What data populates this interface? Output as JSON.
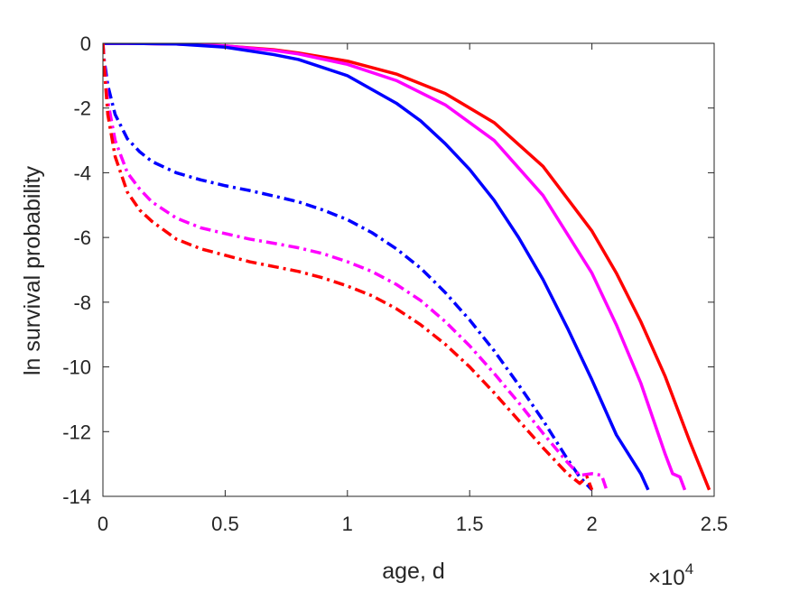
{
  "chart_data": {
    "type": "line",
    "xlabel": "age, d",
    "ylabel": "ln survival probability",
    "xlim": [
      0,
      25000
    ],
    "ylim": [
      -14,
      0
    ],
    "x_ticks": [
      0,
      5000,
      10000,
      15000,
      20000,
      25000
    ],
    "x_tick_labels": [
      "0",
      "0.5",
      "1",
      "1.5",
      "2",
      "2.5"
    ],
    "x_exponent": {
      "base": "×10",
      "power": "4"
    },
    "y_ticks": [
      0,
      -2,
      -4,
      -6,
      -8,
      -10,
      -12,
      -14
    ],
    "y_tick_labels": [
      "0",
      "-2",
      "-4",
      "-6",
      "-8",
      "-10",
      "-12",
      "-14"
    ],
    "grid": false,
    "box": true,
    "series": [
      {
        "color": "#ff0000",
        "style": "solid",
        "x": [
          0,
          1000,
          3000,
          5000,
          7000,
          8000,
          10000,
          12000,
          14000,
          16000,
          18000,
          20000,
          21000,
          22000,
          23000,
          24000,
          24800
        ],
        "y": [
          0,
          0,
          -0.02,
          -0.08,
          -0.2,
          -0.3,
          -0.55,
          -0.95,
          -1.55,
          -2.45,
          -3.8,
          -5.8,
          -7.1,
          -8.6,
          -10.3,
          -12.3,
          -13.8
        ]
      },
      {
        "color": "#ff00ff",
        "style": "solid",
        "x": [
          0,
          1000,
          3000,
          5000,
          7000,
          8000,
          10000,
          12000,
          14000,
          16000,
          18000,
          20000,
          21000,
          22000,
          23000,
          23300,
          23600,
          23800
        ],
        "y": [
          0,
          0,
          -0.02,
          -0.08,
          -0.22,
          -0.33,
          -0.65,
          -1.15,
          -1.9,
          -3.0,
          -4.7,
          -7.1,
          -8.7,
          -10.5,
          -12.7,
          -13.3,
          -13.4,
          -13.8
        ]
      },
      {
        "color": "#0000ff",
        "style": "solid",
        "x": [
          0,
          1000,
          3000,
          5000,
          7000,
          8000,
          10000,
          12000,
          13000,
          14000,
          15000,
          16000,
          17000,
          18000,
          19000,
          20000,
          21000,
          22000,
          22300
        ],
        "y": [
          0,
          0,
          -0.02,
          -0.12,
          -0.35,
          -0.5,
          -1.0,
          -1.85,
          -2.4,
          -3.1,
          -3.9,
          -4.85,
          -6.0,
          -7.3,
          -8.8,
          -10.4,
          -12.1,
          -13.3,
          -13.8
        ]
      },
      {
        "color": "#0000ff",
        "style": "dashdot",
        "x": [
          0,
          50,
          200,
          500,
          1000,
          1500,
          2000,
          3000,
          4000,
          5000,
          6000,
          7000,
          8000,
          9000,
          10000,
          11000,
          12000,
          13000,
          14000,
          15000,
          16000,
          17000,
          18000,
          19000,
          19500,
          20000
        ],
        "y": [
          0,
          -0.5,
          -1.3,
          -2.2,
          -2.95,
          -3.35,
          -3.65,
          -4.0,
          -4.22,
          -4.4,
          -4.55,
          -4.72,
          -4.9,
          -5.15,
          -5.45,
          -5.85,
          -6.35,
          -6.95,
          -7.7,
          -8.55,
          -9.5,
          -10.55,
          -11.65,
          -12.85,
          -13.4,
          -13.8
        ]
      },
      {
        "color": "#ff00ff",
        "style": "dashdot",
        "x": [
          0,
          50,
          200,
          500,
          1000,
          1500,
          2000,
          3000,
          4000,
          5000,
          6000,
          7000,
          8000,
          9000,
          10000,
          11000,
          12000,
          13000,
          14000,
          15000,
          16000,
          17000,
          18000,
          19000,
          19500,
          20000,
          20400,
          20600
        ],
        "y": [
          0,
          -0.6,
          -1.8,
          -3.0,
          -4.0,
          -4.5,
          -4.9,
          -5.4,
          -5.7,
          -5.88,
          -6.05,
          -6.18,
          -6.32,
          -6.5,
          -6.75,
          -7.05,
          -7.45,
          -7.95,
          -8.6,
          -9.35,
          -10.2,
          -11.1,
          -12.05,
          -12.95,
          -13.35,
          -13.3,
          -13.35,
          -13.8
        ]
      },
      {
        "color": "#ff0000",
        "style": "dashdot",
        "x": [
          0,
          50,
          200,
          500,
          1000,
          1500,
          2000,
          3000,
          4000,
          5000,
          6000,
          7000,
          8000,
          9000,
          10000,
          11000,
          12000,
          13000,
          14000,
          15000,
          16000,
          17000,
          18000,
          19000,
          19500,
          19800,
          20000
        ],
        "y": [
          0,
          -0.7,
          -2.2,
          -3.5,
          -4.6,
          -5.15,
          -5.5,
          -6.05,
          -6.35,
          -6.55,
          -6.75,
          -6.9,
          -7.05,
          -7.25,
          -7.5,
          -7.8,
          -8.2,
          -8.7,
          -9.3,
          -10.0,
          -10.8,
          -11.65,
          -12.5,
          -13.3,
          -13.6,
          -13.4,
          -13.8
        ]
      }
    ]
  }
}
